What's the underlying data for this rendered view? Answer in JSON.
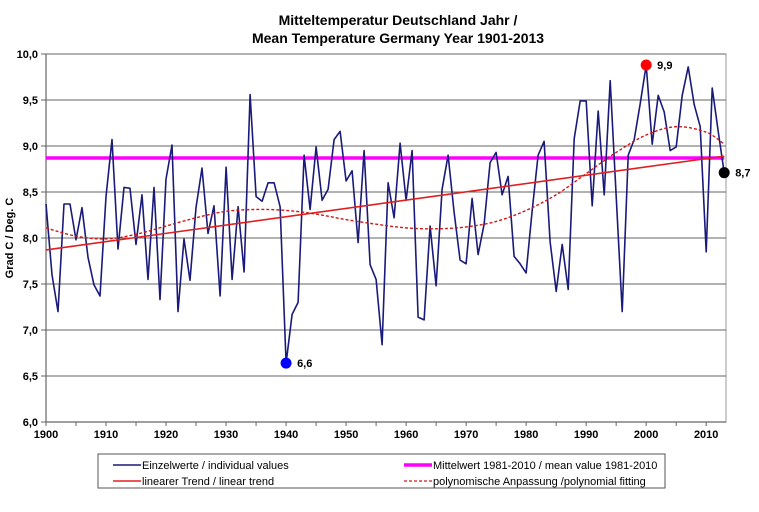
{
  "chart_data": {
    "type": "line",
    "title": [
      "Mitteltemperatur Deutschland Jahr /",
      "Mean Temperature Germany Year 1901-2013"
    ],
    "xlabel": "",
    "ylabel": "Grad C / Deg. C",
    "xlim": [
      1900,
      2013.3
    ],
    "ylim": [
      6.0,
      10.0
    ],
    "x_ticks": [
      "1900",
      "1910",
      "1920",
      "1930",
      "1940",
      "1950",
      "1960",
      "1970",
      "1980",
      "1990",
      "2000",
      "2010"
    ],
    "x_tick_values": [
      1900,
      1910,
      1920,
      1930,
      1940,
      1950,
      1960,
      1970,
      1980,
      1990,
      2000,
      2010
    ],
    "x_minor_tick_step": 5,
    "y_ticks": [
      "6,0",
      "6,5",
      "7,0",
      "7,5",
      "8,0",
      "8,5",
      "9,0",
      "9,5",
      "10,0"
    ],
    "y_tick_values": [
      6.0,
      6.5,
      7.0,
      7.5,
      8.0,
      8.5,
      9.0,
      9.5,
      10.0
    ],
    "grid": "horizontal",
    "legend_position": "bottom",
    "series": [
      {
        "name": "Einzelwerte / individual values",
        "kind": "line",
        "color": "#1a1a7a",
        "start_year": 1900,
        "values": [
          8.37,
          7.6,
          7.2,
          8.37,
          8.37,
          7.98,
          8.33,
          7.79,
          7.49,
          7.37,
          8.45,
          9.07,
          7.88,
          8.55,
          8.54,
          7.93,
          8.47,
          7.55,
          8.55,
          7.33,
          8.64,
          9.01,
          7.2,
          7.99,
          7.54,
          8.33,
          8.76,
          8.05,
          8.35,
          7.37,
          8.77,
          7.55,
          8.34,
          7.63,
          9.56,
          8.45,
          8.4,
          8.6,
          8.6,
          8.34,
          6.64,
          7.17,
          7.3,
          8.9,
          8.31,
          8.99,
          8.41,
          8.53,
          9.07,
          9.16,
          8.62,
          8.73,
          7.95,
          8.95,
          7.71,
          7.55,
          6.84,
          8.6,
          8.22,
          9.03,
          8.41,
          8.95,
          7.14,
          7.11,
          8.13,
          7.48,
          8.53,
          8.9,
          8.28,
          7.76,
          7.72,
          8.43,
          7.82,
          8.15,
          8.82,
          8.93,
          8.47,
          8.67,
          7.8,
          7.72,
          7.62,
          8.29,
          8.9,
          9.05,
          7.96,
          7.42,
          7.93,
          7.44,
          9.08,
          9.49,
          9.49,
          8.35,
          9.38,
          8.47,
          9.71,
          8.45,
          7.2,
          8.9,
          9.07,
          9.46,
          9.88,
          9.02,
          9.55,
          9.37,
          8.95,
          8.99,
          9.55,
          9.86,
          9.45,
          9.21,
          7.85,
          9.63,
          9.16,
          8.71
        ]
      },
      {
        "name": "Mittelwert 1981-2010 / mean value 1981-2010",
        "kind": "hline",
        "color": "#ff00ff",
        "value": 8.87,
        "x_range": [
          1900,
          2013
        ]
      },
      {
        "name": "linearer Trend / linear trend",
        "kind": "line",
        "color": "#e02020",
        "x": [
          1900,
          2013
        ],
        "values": [
          7.87,
          8.89
        ]
      },
      {
        "name": "polynomische Anpassung /polynomial fitting",
        "kind": "dashed-line",
        "color": "#d01818",
        "x": [
          1900,
          1905,
          1910,
          1915,
          1920,
          1925,
          1930,
          1935,
          1940,
          1945,
          1950,
          1955,
          1960,
          1965,
          1970,
          1975,
          1980,
          1985,
          1990,
          1995,
          2000,
          2005,
          2010,
          2013
        ],
        "values": [
          8.11,
          8.02,
          7.99,
          8.04,
          8.13,
          8.22,
          8.29,
          8.31,
          8.3,
          8.26,
          8.2,
          8.15,
          8.11,
          8.1,
          8.12,
          8.18,
          8.3,
          8.47,
          8.7,
          8.93,
          9.12,
          9.21,
          9.15,
          9.02
        ]
      }
    ],
    "annotations": [
      {
        "label": "6,6",
        "year": 1940,
        "value": 6.64,
        "marker_color": "#0000ff"
      },
      {
        "label": "9,9",
        "year": 2000,
        "value": 9.88,
        "marker_color": "#ff0000"
      },
      {
        "label": "8,7",
        "year": 2013,
        "value": 8.71,
        "marker_color": "#000000"
      }
    ],
    "legend": [
      {
        "label": "Einzelwerte / individual values",
        "color": "#1a1a7a",
        "style": "solid"
      },
      {
        "label": "Mittelwert 1981-2010 / mean value 1981-2010",
        "color": "#ff00ff",
        "style": "thick"
      },
      {
        "label": "linearer Trend / linear trend",
        "color": "#e02020",
        "style": "solid"
      },
      {
        "label": "polynomische Anpassung /polynomial fitting",
        "color": "#d01818",
        "style": "dashed"
      }
    ]
  }
}
